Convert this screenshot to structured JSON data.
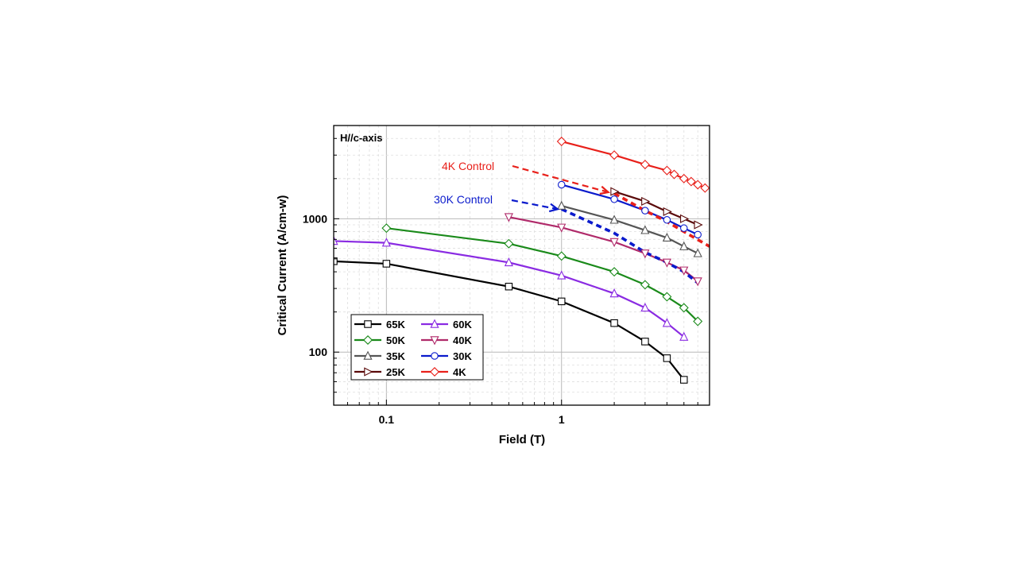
{
  "chart_data": {
    "type": "line",
    "title": "",
    "xlabel": "Field (T)",
    "ylabel": "Critical Current (A/cm-w)",
    "x_scale": "log",
    "y_scale": "log",
    "xlim": [
      0.05,
      7
    ],
    "ylim": [
      40,
      5000
    ],
    "x_ticks": [
      {
        "value": 0.1,
        "label": "0.1"
      },
      {
        "value": 1,
        "label": "1"
      }
    ],
    "y_ticks": [
      {
        "value": 100,
        "label": "100"
      },
      {
        "value": 1000,
        "label": "1000"
      }
    ],
    "grid": true,
    "legend_position": "bottom-left",
    "annotation_text": "H//c-axis",
    "series": [
      {
        "name": "65K",
        "color": "#000000",
        "marker": "square",
        "x": [
          0.05,
          0.1,
          0.5,
          1,
          2,
          3,
          4,
          5
        ],
        "y": [
          480,
          460,
          310,
          240,
          165,
          120,
          90,
          62
        ]
      },
      {
        "name": "50K",
        "color": "#1a8a1a",
        "marker": "diamond",
        "x": [
          0.1,
          0.5,
          1,
          2,
          3,
          4,
          5,
          6
        ],
        "y": [
          850,
          650,
          525,
          400,
          320,
          260,
          215,
          170
        ]
      },
      {
        "name": "35K",
        "color": "#555555",
        "marker": "triangle-up",
        "x": [
          1,
          2,
          3,
          4,
          5,
          6
        ],
        "y": [
          1250,
          980,
          820,
          720,
          620,
          550
        ]
      },
      {
        "name": "25K",
        "color": "#5a0a0a",
        "marker": "triangle-right",
        "x": [
          2,
          3,
          4,
          5,
          6
        ],
        "y": [
          1600,
          1350,
          1130,
          1000,
          900
        ]
      },
      {
        "name": "60K",
        "color": "#8a2be2",
        "marker": "triangle-up",
        "x": [
          0.05,
          0.1,
          0.5,
          1,
          2,
          3,
          4,
          5
        ],
        "y": [
          680,
          660,
          470,
          375,
          275,
          215,
          165,
          130
        ]
      },
      {
        "name": "40K",
        "color": "#b02a6a",
        "marker": "triangle-down",
        "x": [
          0.5,
          1,
          2,
          3,
          4,
          5,
          6
        ],
        "y": [
          1030,
          860,
          670,
          550,
          470,
          410,
          340
        ]
      },
      {
        "name": "30K",
        "color": "#0a1acc",
        "marker": "circle",
        "x": [
          1,
          2,
          3,
          4,
          5,
          6
        ],
        "y": [
          1800,
          1400,
          1150,
          980,
          850,
          760
        ]
      },
      {
        "name": "4K",
        "color": "#e8201a",
        "marker": "diamond",
        "x": [
          1,
          2,
          3,
          4,
          4.4,
          5,
          5.5,
          6,
          6.6
        ],
        "y": [
          3800,
          3000,
          2550,
          2300,
          2150,
          2000,
          1900,
          1800,
          1700
        ]
      }
    ],
    "control_series": [
      {
        "name": "4K Control",
        "color": "#e8201a",
        "x": [
          2,
          3,
          4,
          5,
          7
        ],
        "y": [
          1550,
          1150,
          950,
          800,
          620
        ]
      },
      {
        "name": "30K Control",
        "color": "#0a1acc",
        "x": [
          1,
          2,
          3,
          4,
          5,
          6
        ],
        "y": [
          1180,
          780,
          560,
          470,
          400,
          330
        ]
      }
    ],
    "legend_entries": [
      "65K",
      "60K",
      "50K",
      "40K",
      "35K",
      "30K",
      "25K",
      "4K"
    ],
    "callouts": [
      {
        "text": "4K Control",
        "color": "#e8201a",
        "target_x": 1.85,
        "target_y": 1580
      },
      {
        "text": "30K Control",
        "color": "#0a1acc",
        "target_x": 0.95,
        "target_y": 1180
      }
    ]
  }
}
